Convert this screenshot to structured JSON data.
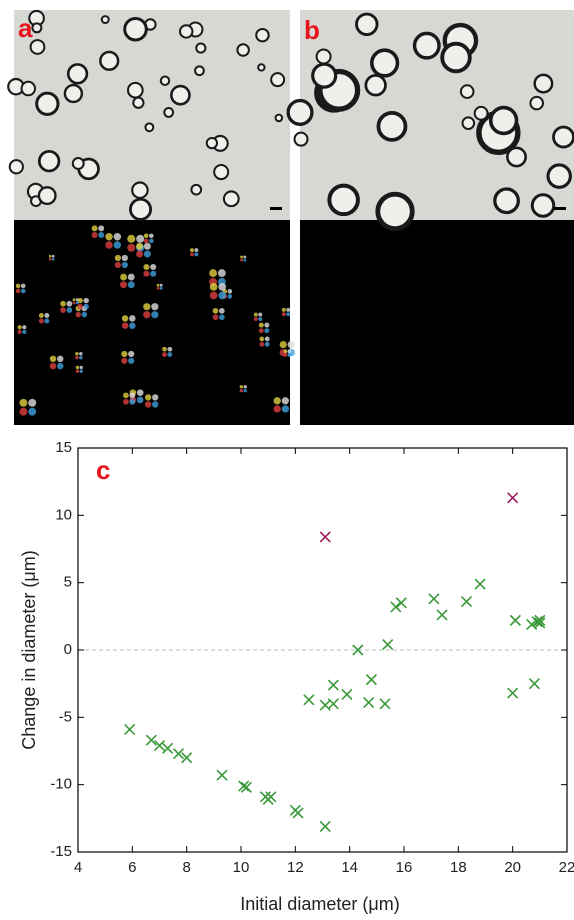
{
  "panels": {
    "a": "a",
    "b": "b"
  },
  "chart_data": {
    "type": "scatter",
    "panel_label": "c",
    "x_label": "Initial diameter (μm)",
    "y_label": "Change in diameter (μm)",
    "xlim": [
      4,
      22
    ],
    "ylim": [
      -15,
      15
    ],
    "xticks": [
      4,
      6,
      8,
      10,
      12,
      14,
      16,
      18,
      20,
      22
    ],
    "yticks": [
      -15,
      -10,
      -5,
      0,
      5,
      10,
      15
    ],
    "zero_line": true,
    "series": [
      {
        "color": "#9b1b5a",
        "x": [
          13.1,
          20.0
        ],
        "values": [
          8.4,
          11.3
        ]
      },
      {
        "color": "#3a9a3a",
        "x": [
          5.9,
          6.7,
          7.0,
          7.3,
          7.7,
          8.0,
          9.3,
          10.1,
          10.2,
          10.9,
          11.0,
          11.1,
          12.0,
          12.1,
          13.1,
          12.5,
          13.1,
          13.4,
          13.4,
          13.9,
          14.3,
          14.7,
          14.8,
          15.3,
          15.4,
          15.7,
          15.9,
          17.1,
          17.4,
          18.3,
          18.8,
          20.0,
          20.1,
          20.7,
          20.8,
          20.9,
          21.0,
          21.0
        ],
        "values": [
          -5.9,
          -6.7,
          -7.1,
          -7.3,
          -7.7,
          -8.0,
          -9.3,
          -10.1,
          -10.2,
          -10.9,
          -11.1,
          -10.9,
          -11.9,
          -12.1,
          -13.1,
          -3.7,
          -4.1,
          -4.0,
          -2.6,
          -3.3,
          0.0,
          -3.9,
          -2.2,
          -4.0,
          0.4,
          3.2,
          3.5,
          3.8,
          2.6,
          3.6,
          4.9,
          -3.2,
          2.2,
          1.9,
          -2.5,
          2.1,
          2.0,
          2.2
        ]
      }
    ]
  }
}
